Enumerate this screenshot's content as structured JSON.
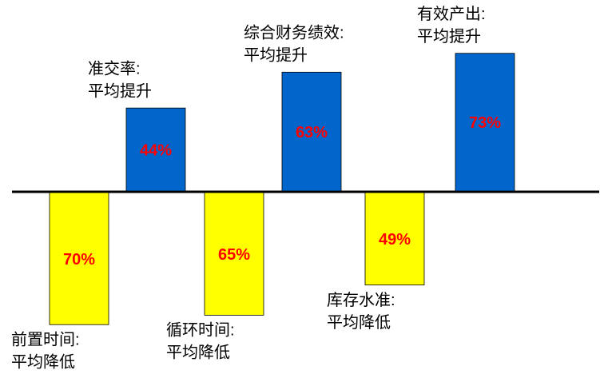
{
  "chart_data": {
    "type": "bar",
    "categories": [
      [
        "前置时间:",
        "平均降低"
      ],
      [
        "准交率:",
        "平均提升"
      ],
      [
        "循环时间:",
        "平均降低"
      ],
      [
        "综合财务绩效:",
        "平均提升"
      ],
      [
        "库存水准:",
        "平均降低"
      ],
      [
        "有效产出:",
        "平均提升"
      ]
    ],
    "values": [
      70,
      44,
      65,
      63,
      49,
      73
    ],
    "value_labels": [
      "70%",
      "44%",
      "65%",
      "63%",
      "49%",
      "73%"
    ],
    "directions": [
      "down",
      "up",
      "down",
      "up",
      "down",
      "up"
    ],
    "colors": [
      "#ffff00",
      "#0066cc",
      "#ffff00",
      "#0066cc",
      "#ffff00",
      "#0066cc"
    ],
    "value_label_color": "#ff0000"
  }
}
